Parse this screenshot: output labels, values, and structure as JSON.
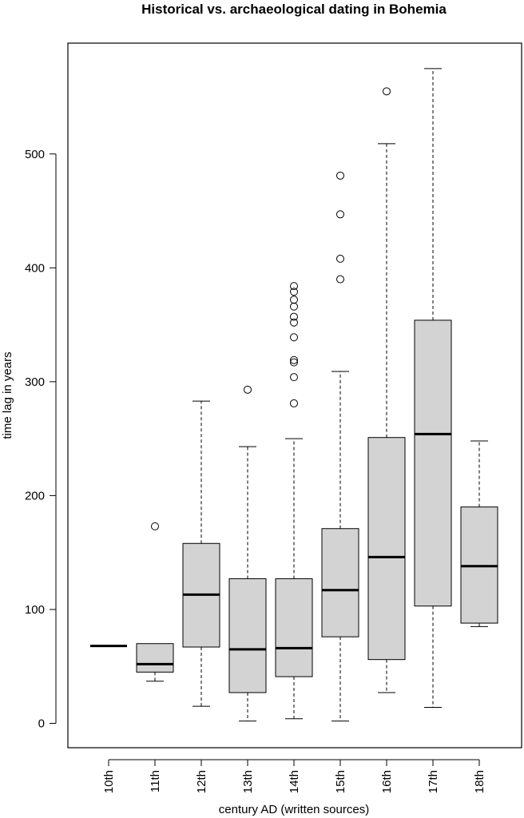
{
  "chart_data": {
    "type": "box",
    "title": "Historical vs. archaeological dating in Bohemia",
    "xlabel": "century AD (written sources)",
    "ylabel": "time lag in years",
    "ylim": [
      -20,
      595
    ],
    "yticks": [
      0,
      100,
      200,
      300,
      400,
      500
    ],
    "categories": [
      "10th",
      "11th",
      "12th",
      "13th",
      "14th",
      "15th",
      "16th",
      "17th",
      "18th"
    ],
    "box_fill": "#d3d3d3",
    "boxes": [
      {
        "category": "10th",
        "whisker_low": 68,
        "q1": 68,
        "median": 68,
        "q3": 68,
        "whisker_high": 68,
        "outliers": []
      },
      {
        "category": "11th",
        "whisker_low": 37,
        "q1": 45,
        "median": 52,
        "q3": 70,
        "whisker_high": 70,
        "outliers": [
          173
        ]
      },
      {
        "category": "12th",
        "whisker_low": 15,
        "q1": 67,
        "median": 113,
        "q3": 158,
        "whisker_high": 283,
        "outliers": []
      },
      {
        "category": "13th",
        "whisker_low": 2,
        "q1": 27,
        "median": 65,
        "q3": 127,
        "whisker_high": 243,
        "outliers": [
          293
        ]
      },
      {
        "category": "14th",
        "whisker_low": 4,
        "q1": 41,
        "median": 66,
        "q3": 127,
        "whisker_high": 250,
        "outliers": [
          281,
          304,
          317,
          319,
          339,
          352,
          357,
          366,
          372,
          379,
          384
        ]
      },
      {
        "category": "15th",
        "whisker_low": 2,
        "q1": 76,
        "median": 117,
        "q3": 171,
        "whisker_high": 309,
        "outliers": [
          390,
          408,
          447,
          481
        ]
      },
      {
        "category": "16th",
        "whisker_low": 27,
        "q1": 56,
        "median": 146,
        "q3": 251,
        "whisker_high": 509,
        "outliers": [
          555
        ]
      },
      {
        "category": "17th",
        "whisker_low": 14,
        "q1": 103,
        "median": 254,
        "q3": 354,
        "whisker_high": 575,
        "outliers": []
      },
      {
        "category": "18th",
        "whisker_low": 85,
        "q1": 88,
        "median": 138,
        "q3": 190,
        "whisker_high": 248,
        "outliers": []
      }
    ]
  }
}
